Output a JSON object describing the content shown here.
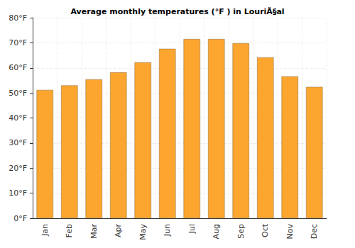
{
  "chart_data": {
    "type": "bar",
    "title": "Average monthly temperatures (°F ) in LouriÃ§al",
    "categories": [
      "Jan",
      "Feb",
      "Mar",
      "Apr",
      "May",
      "Jun",
      "Jul",
      "Aug",
      "Sep",
      "Oct",
      "Nov",
      "Dec"
    ],
    "values": [
      51.2,
      53.0,
      55.4,
      58.2,
      62.2,
      67.6,
      71.5,
      71.5,
      69.8,
      64.2,
      56.6,
      52.4
    ],
    "color": "#fca630",
    "ylim": [
      0,
      80
    ],
    "yticks": [
      {
        "value": 0,
        "label": "0°F"
      },
      {
        "value": 10,
        "label": "10°F"
      },
      {
        "value": 20,
        "label": "20°F"
      },
      {
        "value": 30,
        "label": "30°F"
      },
      {
        "value": 40,
        "label": "40°F"
      },
      {
        "value": 50,
        "label": "50°F"
      },
      {
        "value": 60,
        "label": "60°F"
      },
      {
        "value": 70,
        "label": "70°F"
      },
      {
        "value": 80,
        "label": "80°F"
      }
    ],
    "grid": true
  }
}
